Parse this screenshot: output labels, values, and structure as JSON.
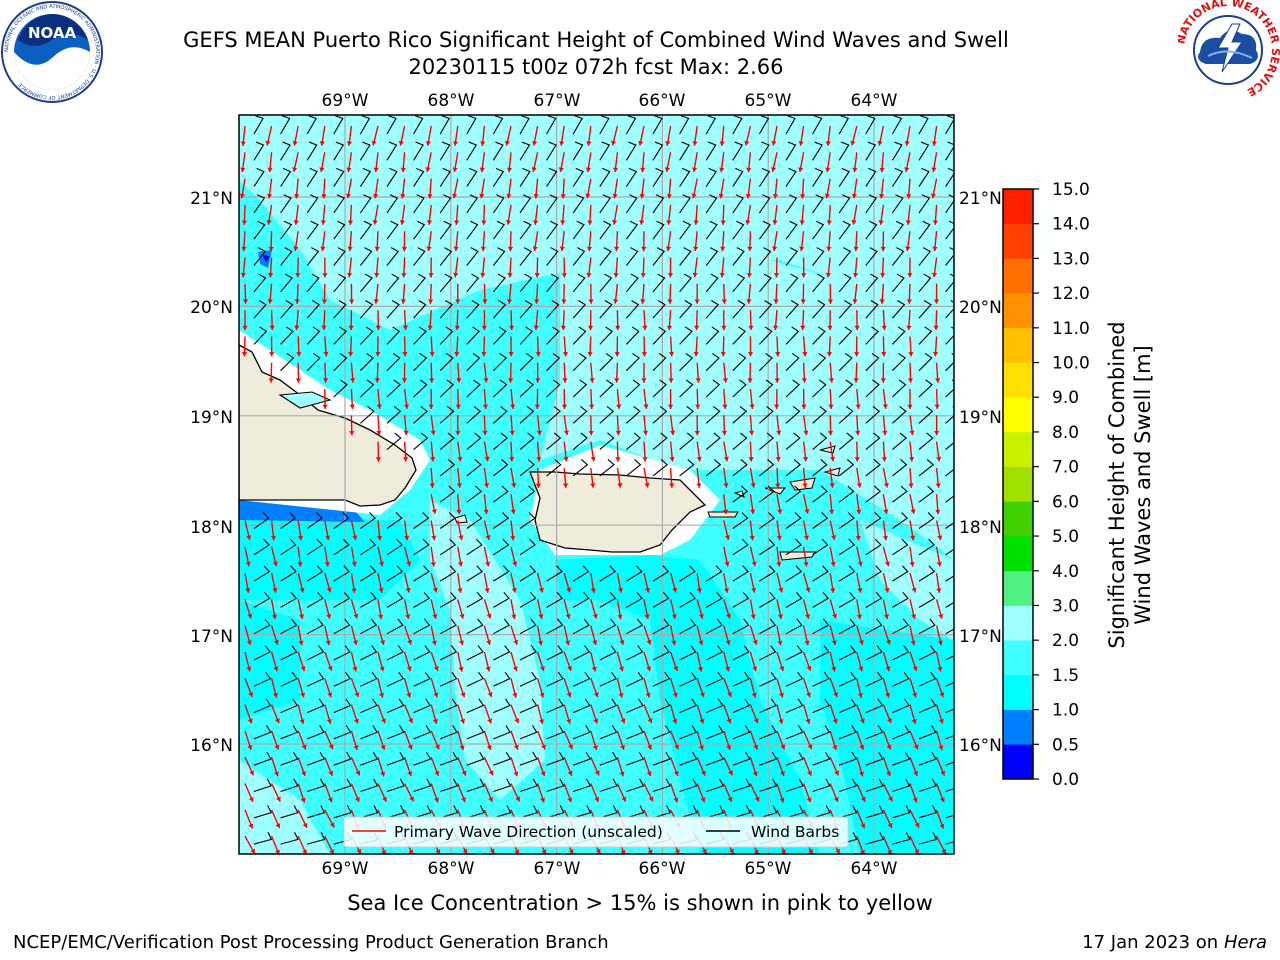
{
  "header": {
    "title_line1": "GEFS MEAN Puerto Rico Significant Height of Combined Wind Waves and Swell",
    "title_line2": "20230115 t00z 072h fcst   Max: 2.66"
  },
  "logos": {
    "left": {
      "text": "NOAA",
      "ring_text": "NATIONAL OCEANIC AND ATMOSPHERIC ADMINISTRATION · U.S. DEPARTMENT OF COMMERCE",
      "icon": "noaa-logo-icon"
    },
    "right": {
      "ring_text": "NATIONAL WEATHER SERVICE",
      "icon": "nws-logo-icon"
    }
  },
  "map": {
    "lon_ticks": [
      "69°W",
      "68°W",
      "67°W",
      "66°W",
      "65°W",
      "64°W"
    ],
    "lat_ticks": [
      "21°N",
      "20°N",
      "19°N",
      "18°N",
      "17°N",
      "16°N"
    ],
    "lon_range": [
      -69.0,
      -62.5
    ],
    "lat_range": [
      15.0,
      21.6
    ],
    "legend": {
      "wave_label": "Primary Wave Direction (unscaled)",
      "barb_label": "Wind Barbs",
      "wave_color": "#ff0000",
      "barb_color": "#000000"
    },
    "land_color": "#efecdc",
    "coast_color": "#000000"
  },
  "colorbar": {
    "label_line1": "Significant Height of Combined",
    "label_line2": "Wind Waves and Swell [m]",
    "ticks": [
      "0.0",
      "0.5",
      "1.0",
      "1.5",
      "2.0",
      "3.0",
      "4.0",
      "5.0",
      "6.0",
      "7.0",
      "8.0",
      "9.0",
      "10.0",
      "11.0",
      "12.0",
      "13.0",
      "14.0",
      "15.0"
    ],
    "colors": [
      "#0000ff",
      "#0080ff",
      "#00ffff",
      "#40ffff",
      "#a0ffff",
      "#50f080",
      "#00e000",
      "#40d000",
      "#a0e000",
      "#c8f000",
      "#ffff00",
      "#ffe000",
      "#ffc000",
      "#ff9000",
      "#ff7000",
      "#ff4000",
      "#ff2000"
    ]
  },
  "caption": "Sea Ice Concentration > 15% is shown in pink to yellow",
  "footer": {
    "left": "NCEP/EMC/Verification Post Processing Product Generation Branch",
    "date": "17 Jan 2023 on ",
    "host": "Hera"
  }
}
